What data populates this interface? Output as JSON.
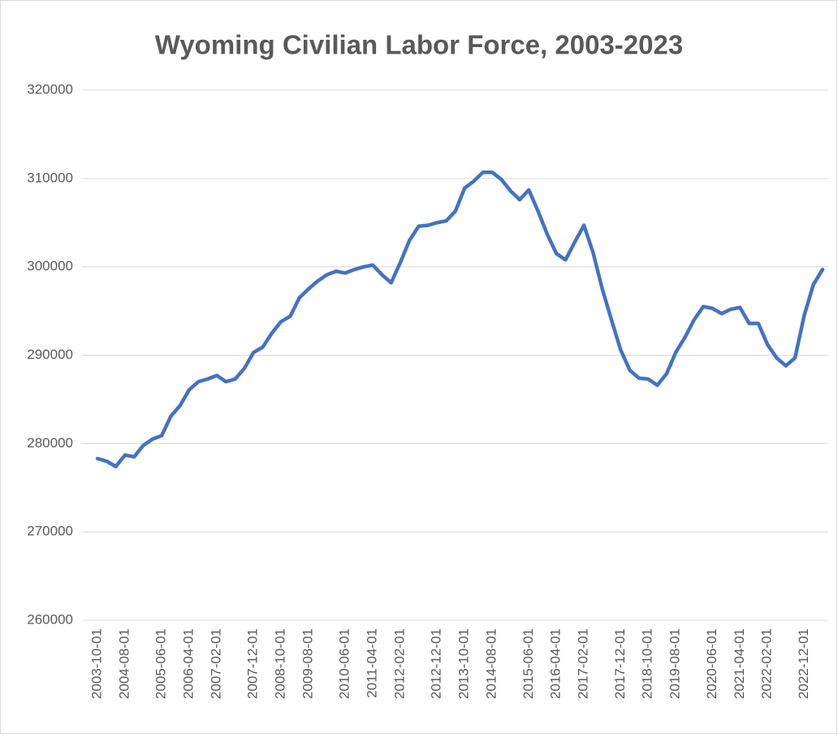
{
  "chart_data": {
    "type": "line",
    "title": "Wyoming Civilian Labor Force, 2003-2023",
    "categories": [
      "2003-10-01",
      null,
      null,
      "2004-08-01",
      null,
      null,
      null,
      "2005-06-01",
      null,
      null,
      "2006-04-01",
      null,
      null,
      "2007-02-01",
      null,
      null,
      null,
      "2007-12-01",
      null,
      null,
      "2008-10-01",
      null,
      null,
      "2009-08-01",
      null,
      null,
      null,
      "2010-06-01",
      null,
      null,
      "2011-04-01",
      null,
      null,
      "2012-02-01",
      null,
      null,
      null,
      "2012-12-01",
      null,
      null,
      "2013-10-01",
      null,
      null,
      "2014-08-01",
      null,
      null,
      null,
      "2015-06-01",
      null,
      null,
      "2016-04-01",
      null,
      null,
      "2017-02-01",
      null,
      null,
      null,
      "2017-12-01",
      null,
      null,
      "2018-10-01",
      null,
      null,
      "2019-08-01",
      null,
      null,
      null,
      "2020-06-01",
      null,
      null,
      "2021-04-01",
      null,
      null,
      "2022-02-01",
      null,
      null,
      null,
      "2022-12-01",
      null,
      null
    ],
    "series": [
      {
        "name": "Wyoming Civilian Labor Force",
        "color": "#4472c4",
        "values": [
          278300,
          278000,
          277400,
          278700,
          278500,
          279800,
          280500,
          280900,
          283100,
          284300,
          286100,
          287000,
          287300,
          287700,
          287000,
          287300,
          288500,
          290300,
          290900,
          292500,
          293800,
          294400,
          296500,
          297500,
          298400,
          299100,
          299500,
          299300,
          299700,
          300000,
          300200,
          299100,
          298200,
          300500,
          303000,
          304600,
          304700,
          305000,
          305200,
          306300,
          308900,
          309700,
          310700,
          310700,
          309900,
          308600,
          307600,
          308700,
          306300,
          303700,
          301500,
          300800,
          302800,
          304700,
          301600,
          297500,
          294000,
          290600,
          288300,
          287400,
          287300,
          286600,
          287900,
          290300,
          292000,
          294000,
          295500,
          295300,
          294700,
          295200,
          295400,
          293600,
          293600,
          291200,
          289700,
          288800,
          289700,
          294500,
          298000,
          299700
        ]
      }
    ],
    "ylim": [
      260000,
      320000
    ],
    "yticks": [
      260000,
      270000,
      280000,
      290000,
      300000,
      310000,
      320000
    ],
    "grid": true
  }
}
